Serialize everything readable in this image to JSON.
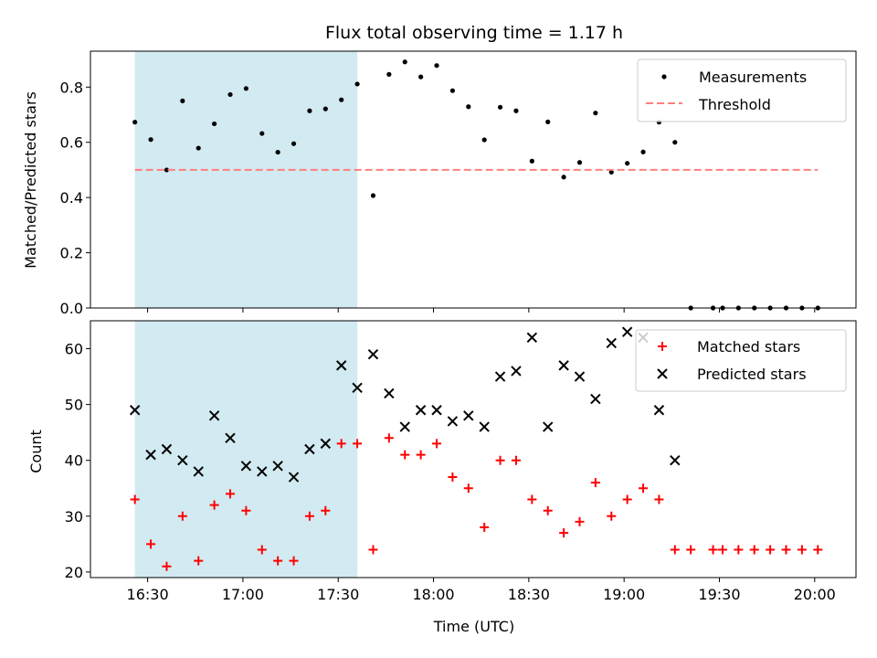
{
  "chart_data": [
    {
      "type": "scatter",
      "title": "Flux total observing time = 1.17 h",
      "xlabel": "",
      "ylabel": "Matched/Predicted stars",
      "ylim": [
        0,
        0.93
      ],
      "yticks": [
        "0.0",
        "0.2",
        "0.4",
        "0.6",
        "0.8"
      ],
      "ytick_values": [
        0.0,
        0.2,
        0.4,
        0.6,
        0.8
      ],
      "legend_position": "upper right",
      "shaded_interval": [
        "16:26",
        "17:36"
      ],
      "colors": {
        "measurements": "#000000",
        "threshold": "#ff7f7f",
        "shade": "#add8e6"
      },
      "series": [
        {
          "name": "Measurements",
          "marker": "dot",
          "x": [
            "16:26",
            "16:31",
            "16:36",
            "16:41",
            "16:46",
            "16:51",
            "16:56",
            "17:01",
            "17:06",
            "17:11",
            "17:16",
            "17:21",
            "17:26",
            "17:31",
            "17:36",
            "17:41",
            "17:46",
            "17:51",
            "17:56",
            "18:01",
            "18:06",
            "18:11",
            "18:16",
            "18:21",
            "18:26",
            "18:31",
            "18:36",
            "18:41",
            "18:46",
            "18:51",
            "18:56",
            "19:01",
            "19:06",
            "19:11",
            "19:16",
            "19:21",
            "19:28",
            "19:31",
            "19:36",
            "19:41",
            "19:46",
            "19:51",
            "19:56",
            "20:01"
          ],
          "y": [
            0.673,
            0.61,
            0.5,
            0.75,
            0.579,
            0.667,
            0.773,
            0.795,
            0.632,
            0.564,
            0.595,
            0.714,
            0.721,
            0.754,
            0.811,
            0.407,
            0.846,
            0.891,
            0.837,
            0.878,
            0.787,
            0.729,
            0.609,
            0.727,
            0.714,
            0.532,
            0.674,
            0.474,
            0.527,
            0.706,
            0.492,
            0.524,
            0.565,
            0.673,
            0.6,
            0.0,
            0.0,
            0.0,
            0.0,
            0.0,
            0.0,
            0.0,
            0.0,
            0.0
          ]
        },
        {
          "name": "Threshold",
          "marker": "dashed-line",
          "x": [
            "16:26",
            "20:01"
          ],
          "y": [
            0.5,
            0.5
          ]
        }
      ]
    },
    {
      "type": "scatter",
      "title": "",
      "xlabel": "Time (UTC)",
      "ylabel": "Count",
      "ylim": [
        19,
        65
      ],
      "yticks": [
        "20",
        "30",
        "40",
        "50",
        "60"
      ],
      "ytick_values": [
        20,
        30,
        40,
        50,
        60
      ],
      "xticks": [
        "16:30",
        "17:00",
        "17:30",
        "18:00",
        "18:30",
        "19:00",
        "19:30",
        "20:00"
      ],
      "legend_position": "upper right",
      "shaded_interval": [
        "16:26",
        "17:36"
      ],
      "colors": {
        "matched": "#ff0000",
        "predicted": "#000000",
        "shade": "#add8e6"
      },
      "series": [
        {
          "name": "Matched stars",
          "marker": "plus",
          "x": [
            "16:26",
            "16:31",
            "16:36",
            "16:41",
            "16:46",
            "16:51",
            "16:56",
            "17:01",
            "17:06",
            "17:11",
            "17:16",
            "17:21",
            "17:26",
            "17:31",
            "17:36",
            "17:41",
            "17:46",
            "17:51",
            "17:56",
            "18:01",
            "18:06",
            "18:11",
            "18:16",
            "18:21",
            "18:26",
            "18:31",
            "18:36",
            "18:41",
            "18:46",
            "18:51",
            "18:56",
            "19:01",
            "19:06",
            "19:11",
            "19:16",
            "19:21",
            "19:28",
            "19:31",
            "19:36",
            "19:41",
            "19:46",
            "19:51",
            "19:56",
            "20:01"
          ],
          "y": [
            33,
            25,
            21,
            30,
            22,
            32,
            34,
            31,
            24,
            22,
            22,
            30,
            31,
            43,
            43,
            24,
            44,
            41,
            41,
            43,
            37,
            35,
            28,
            40,
            40,
            33,
            31,
            27,
            29,
            36,
            30,
            33,
            35,
            33,
            24,
            24,
            24,
            24,
            24,
            24,
            24,
            24,
            24,
            24
          ]
        },
        {
          "name": "Predicted stars",
          "marker": "x",
          "x": [
            "16:26",
            "16:31",
            "16:36",
            "16:41",
            "16:46",
            "16:51",
            "16:56",
            "17:01",
            "17:06",
            "17:11",
            "17:16",
            "17:21",
            "17:26",
            "17:31",
            "17:36",
            "17:41",
            "17:46",
            "17:51",
            "17:56",
            "18:01",
            "18:06",
            "18:11",
            "18:16",
            "18:21",
            "18:26",
            "18:31",
            "18:36",
            "18:41",
            "18:46",
            "18:51",
            "18:56",
            "19:01",
            "19:06",
            "19:11",
            "19:16"
          ],
          "y": [
            49,
            41,
            42,
            40,
            38,
            48,
            44,
            39,
            38,
            39,
            37,
            42,
            43,
            57,
            53,
            59,
            52,
            46,
            49,
            49,
            47,
            48,
            46,
            55,
            56,
            62,
            46,
            57,
            55,
            51,
            61,
            63,
            62,
            49,
            40
          ]
        }
      ]
    }
  ]
}
